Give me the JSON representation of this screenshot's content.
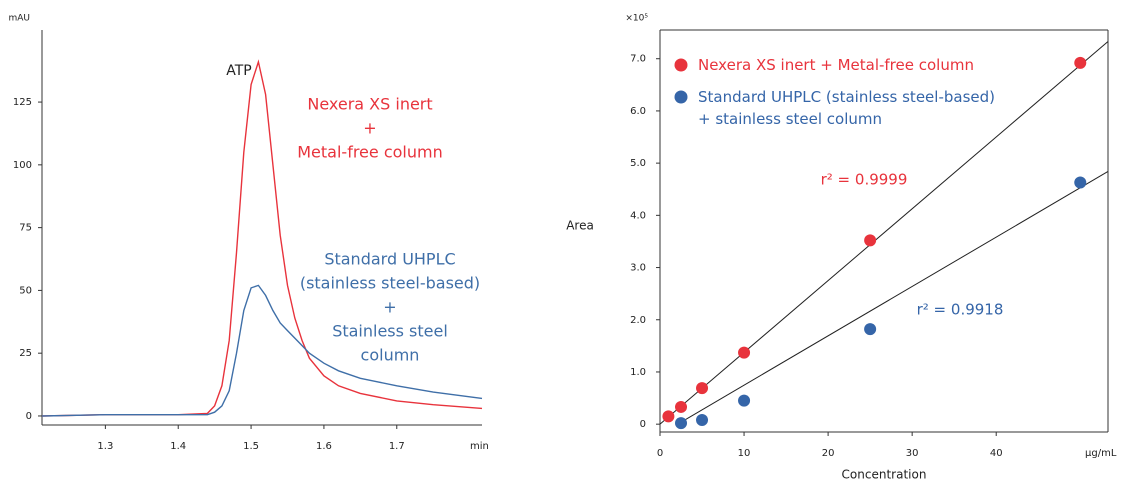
{
  "chart_data": [
    {
      "type": "line",
      "y_unit": "mAU",
      "x_unit": "min",
      "x": [
        1.213,
        1.3,
        1.4,
        1.44,
        1.45,
        1.46,
        1.47,
        1.48,
        1.49,
        1.5,
        1.51,
        1.52,
        1.53,
        1.54,
        1.55,
        1.56,
        1.57,
        1.58,
        1.6,
        1.62,
        1.65,
        1.7,
        1.75,
        1.817
      ],
      "series": [
        {
          "color": "#e8333c",
          "values": [
            0,
            0.5,
            0.5,
            1,
            4,
            12,
            30,
            65,
            105,
            132,
            141,
            128,
            100,
            72,
            52,
            39,
            30,
            23,
            16,
            12,
            9,
            6,
            4.5,
            3
          ]
        },
        {
          "color": "#3f6fa8",
          "values": [
            0,
            0.5,
            0.5,
            0.5,
            1.5,
            4,
            10,
            25,
            42,
            51,
            52,
            48,
            42,
            37,
            34,
            31,
            28,
            25,
            21,
            18,
            15,
            12,
            9.5,
            7
          ]
        }
      ],
      "xlim": [
        1.213,
        1.817
      ],
      "xticks": [
        1.3,
        1.4,
        1.5,
        1.6,
        1.7
      ],
      "ylim": [
        -3.6,
        153.7
      ],
      "yticks": [
        0,
        25,
        50,
        75,
        100,
        125
      ],
      "annotations": [
        {
          "lines": [
            "ATP"
          ],
          "color": "#222222"
        },
        {
          "lines": [
            "Nexera XS inert",
            "+",
            "Metal-free column"
          ],
          "color": "#e8333c"
        },
        {
          "lines": [
            "Standard UHPLC",
            "(stainless steel-based)",
            "+",
            "Stainless steel",
            "column"
          ],
          "color": "#3f6fa8"
        }
      ]
    },
    {
      "type": "scatter",
      "y_unit": "×10⁵",
      "x_unit": "µg/mL",
      "x_label": "Concentration",
      "y_label": "Area",
      "series": [
        {
          "name": "Nexera XS inert + Metal-free column",
          "color": "#e8333c",
          "x": [
            1,
            2.5,
            5,
            10,
            25,
            50
          ],
          "values": [
            0.15,
            0.33,
            0.69,
            1.37,
            3.52,
            6.92
          ]
        },
        {
          "name": "Standard UHPLC (stainless steel-based)\n+ stainless steel column",
          "color": "#3565a8",
          "x": [
            2.5,
            5,
            10,
            25,
            50
          ],
          "values": [
            0.02,
            0.08,
            0.45,
            1.82,
            4.63
          ]
        }
      ],
      "fits": [
        {
          "color": "#222222",
          "x": [
            0,
            53.3
          ],
          "values": [
            0,
            7.33
          ]
        },
        {
          "color": "#222222",
          "x": [
            2.1,
            53.3
          ],
          "values": [
            0,
            4.84
          ]
        }
      ],
      "xlim": [
        0,
        53.3
      ],
      "xticks": [
        0,
        10,
        20,
        30,
        40
      ],
      "ylim": [
        -0.15,
        7.55
      ],
      "yticks": [
        0,
        {
          "value": 1,
          "label": "1.0"
        },
        {
          "value": 2,
          "label": "2.0"
        },
        {
          "value": 3,
          "label": "3.0"
        },
        {
          "value": 4,
          "label": "4.0"
        },
        {
          "value": 5,
          "label": "5.0"
        },
        {
          "value": 6,
          "label": "6.0"
        },
        {
          "value": 7,
          "label": "7.0"
        }
      ],
      "annotations": [
        {
          "lines": [
            "r² = 0.9999"
          ],
          "color": "#e8333c"
        },
        {
          "lines": [
            "r² = 0.9918"
          ],
          "color": "#3565a8"
        }
      ]
    }
  ]
}
